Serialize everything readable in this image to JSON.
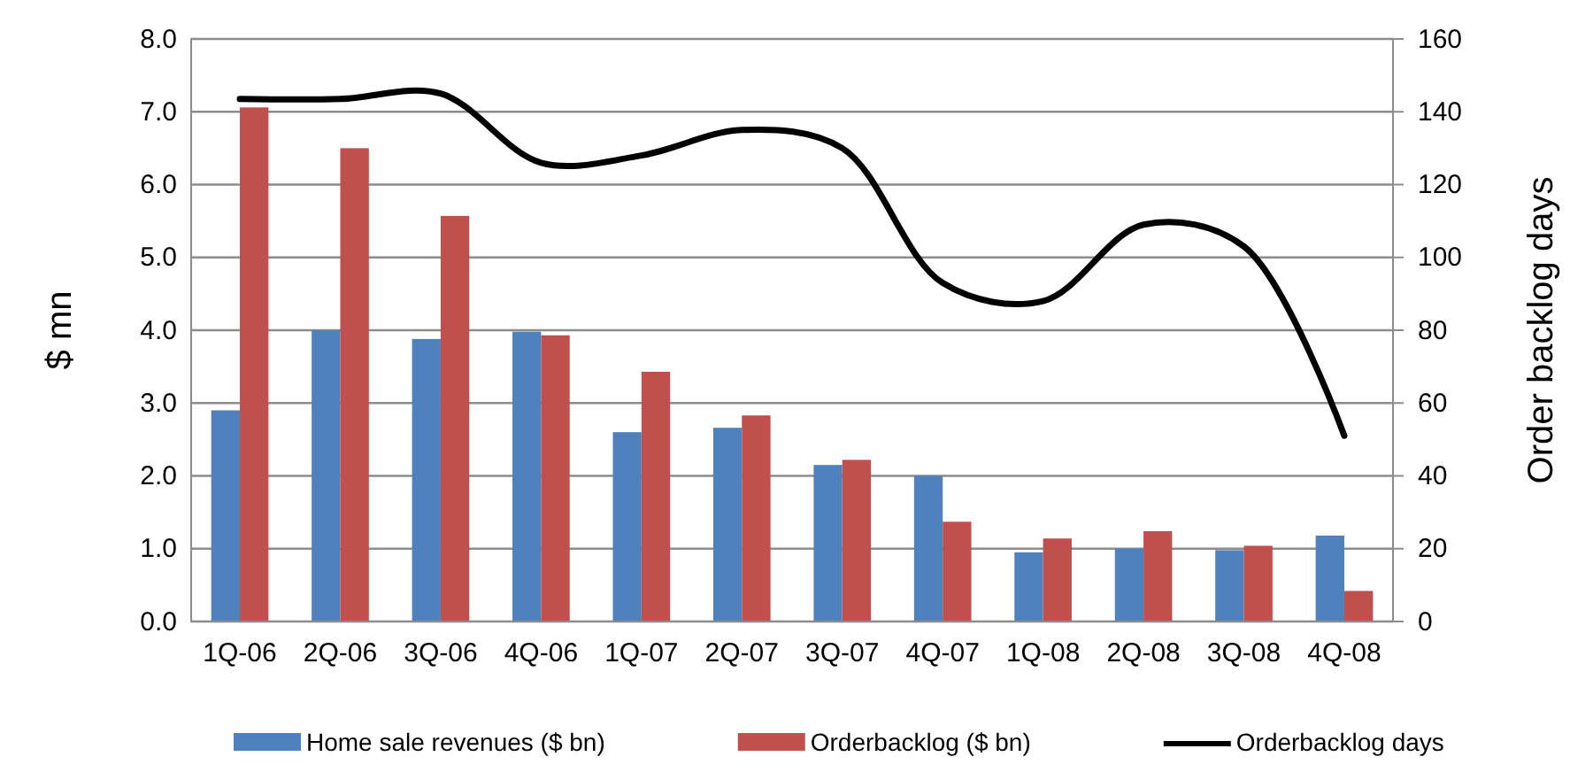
{
  "chart_data": {
    "type": "bar",
    "ylabel": "$ mn",
    "y2label": "Order backlog days",
    "categories": [
      "1Q-06",
      "2Q-06",
      "3Q-06",
      "4Q-06",
      "1Q-07",
      "2Q-07",
      "3Q-07",
      "4Q-07",
      "1Q-08",
      "2Q-08",
      "3Q-08",
      "4Q-08"
    ],
    "series": [
      {
        "name": "Home sale revenues  ($ bn)",
        "color": "#4f81bd",
        "values": [
          2.9,
          4.0,
          3.88,
          3.98,
          2.6,
          2.66,
          2.15,
          2.0,
          0.95,
          1.0,
          0.98,
          1.18
        ]
      },
      {
        "name": "Orderbacklog  ($ bn)",
        "color": "#c0504d",
        "values": [
          7.06,
          6.5,
          5.57,
          3.93,
          3.43,
          2.83,
          2.22,
          1.37,
          1.14,
          1.24,
          1.04,
          0.42
        ]
      },
      {
        "name": "Orderbacklog  days",
        "type": "line",
        "axis": "y2",
        "color": "#000000",
        "values": [
          143.5,
          143.5,
          145,
          126,
          128,
          135,
          130,
          93,
          88,
          109,
          103,
          51
        ]
      }
    ],
    "ylim": [
      0,
      8
    ],
    "yticks": [
      {
        "value": 0,
        "label": "0.0"
      },
      {
        "value": 1,
        "label": "1.0"
      },
      {
        "value": 2,
        "label": "2.0"
      },
      {
        "value": 3,
        "label": "3.0"
      },
      {
        "value": 4,
        "label": "4.0"
      },
      {
        "value": 5,
        "label": "5.0"
      },
      {
        "value": 6,
        "label": "6.0"
      },
      {
        "value": 7,
        "label": "7.0"
      },
      {
        "value": 8,
        "label": "8.0"
      }
    ],
    "y2lim": [
      0,
      160
    ],
    "y2ticks": [
      0,
      20,
      40,
      60,
      80,
      100,
      120,
      140,
      160
    ],
    "grid": "y",
    "legend": "bottom",
    "marker": "none"
  }
}
